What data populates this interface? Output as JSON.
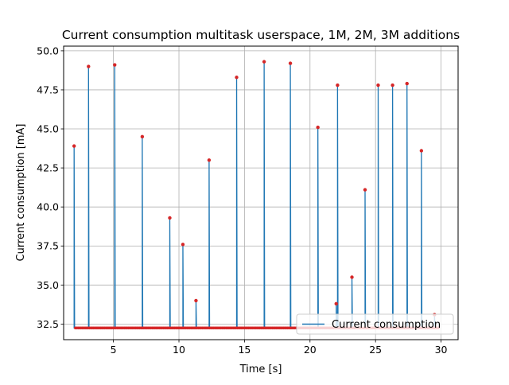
{
  "chart_data": {
    "type": "line",
    "title": "Current consumption multitask userspace, 1M, 2M, 3M additions",
    "xlabel": "Time [s]",
    "ylabel": "Current consumption [mA]",
    "xlim": [
      1.2,
      31.3
    ],
    "ylim": [
      31.5,
      50.3
    ],
    "grid": true,
    "legend_position": "lower-right",
    "x_ticks": [
      5,
      10,
      15,
      20,
      25,
      30
    ],
    "x_tick_labels": [
      "5",
      "10",
      "15",
      "20",
      "25",
      "30"
    ],
    "y_ticks": [
      32.5,
      35.0,
      37.5,
      40.0,
      42.5,
      45.0,
      47.5,
      50.0
    ],
    "y_tick_labels": [
      "32.5",
      "35.0",
      "37.5",
      "40.0",
      "42.5",
      "45.0",
      "47.5",
      "50.0"
    ],
    "baseline": 32.25,
    "baseline_range": [
      2.1,
      29.8
    ],
    "series": [
      {
        "name": "Current consumption",
        "color": "#1f77b4",
        "marker_color": "#d62728",
        "peaks": [
          {
            "x": 2.0,
            "y": 43.9
          },
          {
            "x": 3.1,
            "y": 49.0
          },
          {
            "x": 5.1,
            "y": 49.1
          },
          {
            "x": 7.2,
            "y": 44.5
          },
          {
            "x": 9.3,
            "y": 39.3
          },
          {
            "x": 10.3,
            "y": 37.6
          },
          {
            "x": 11.3,
            "y": 34.0
          },
          {
            "x": 12.3,
            "y": 43.0
          },
          {
            "x": 14.4,
            "y": 48.3
          },
          {
            "x": 16.5,
            "y": 49.3
          },
          {
            "x": 18.5,
            "y": 49.2
          },
          {
            "x": 20.6,
            "y": 45.1
          },
          {
            "x": 22.0,
            "y": 33.8
          },
          {
            "x": 22.1,
            "y": 47.8
          },
          {
            "x": 23.2,
            "y": 35.5
          },
          {
            "x": 24.2,
            "y": 41.1
          },
          {
            "x": 25.2,
            "y": 47.8
          },
          {
            "x": 26.3,
            "y": 47.8
          },
          {
            "x": 27.4,
            "y": 47.9
          },
          {
            "x": 28.5,
            "y": 43.6
          },
          {
            "x": 29.5,
            "y": 33.1
          }
        ]
      }
    ]
  }
}
